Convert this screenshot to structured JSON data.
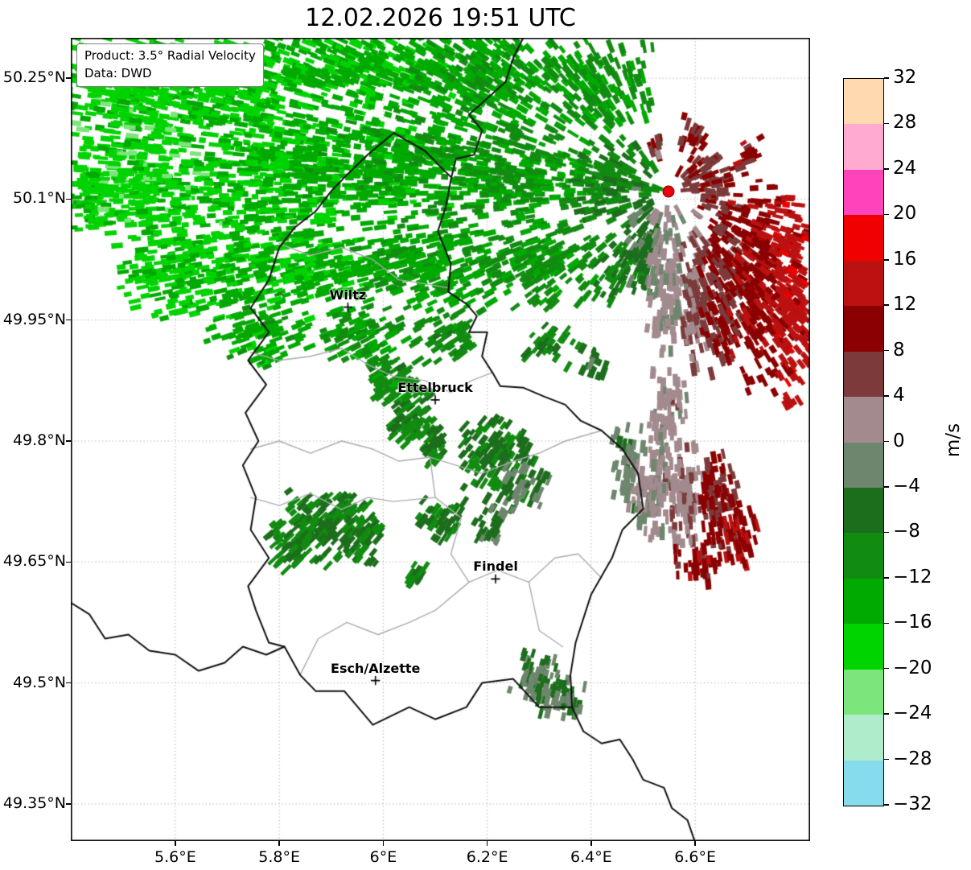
{
  "title": "12.02.2026 19:51 UTC",
  "info_box": {
    "line1": "Product: 3.5° Radial Velocity",
    "line2": "Data: DWD"
  },
  "colorbar": {
    "unit": "m/s",
    "tick_values": [
      32,
      28,
      24,
      20,
      16,
      12,
      8,
      4,
      0,
      -4,
      -8,
      -12,
      -16,
      -20,
      -24,
      -28,
      -32
    ],
    "tick_labels": [
      "32",
      "28",
      "24",
      "20",
      "16",
      "12",
      "8",
      "4",
      "0",
      "−4",
      "−8",
      "−12",
      "−16",
      "−20",
      "−24",
      "−28",
      "−32"
    ],
    "palette": [
      {
        "from": -32,
        "to": -28,
        "color": "#86dcec"
      },
      {
        "from": -28,
        "to": -24,
        "color": "#aeeccc"
      },
      {
        "from": -24,
        "to": -20,
        "color": "#7ce57c"
      },
      {
        "from": -20,
        "to": -16,
        "color": "#00d400"
      },
      {
        "from": -16,
        "to": -12,
        "color": "#00aa00"
      },
      {
        "from": -12,
        "to": -8,
        "color": "#118c11"
      },
      {
        "from": -8,
        "to": -4,
        "color": "#1c6e1c"
      },
      {
        "from": -4,
        "to": 0,
        "color": "#6e866e"
      },
      {
        "from": 0,
        "to": 4,
        "color": "#a28a8e"
      },
      {
        "from": 4,
        "to": 8,
        "color": "#7c3a3a"
      },
      {
        "from": 8,
        "to": 12,
        "color": "#8b0000"
      },
      {
        "from": 12,
        "to": 16,
        "color": "#bb1111"
      },
      {
        "from": 16,
        "to": 20,
        "color": "#f00000"
      },
      {
        "from": 20,
        "to": 24,
        "color": "#ff44bb"
      },
      {
        "from": 24,
        "to": 28,
        "color": "#ffaace"
      },
      {
        "from": 28,
        "to": 32,
        "color": "#ffd9b0"
      }
    ]
  },
  "chart_data": {
    "type": "heatmap",
    "title": "12.02.2026 19:51 UTC",
    "product": "3.5° Radial Velocity",
    "source": "DWD",
    "unit": "m/s",
    "value_range": [
      -32,
      32
    ],
    "lon_range": [
      5.399,
      6.821
    ],
    "lat_range": [
      49.304,
      50.3
    ],
    "x_ticks": {
      "values": [
        5.6,
        5.8,
        6.0,
        6.2,
        6.4,
        6.6
      ],
      "labels": [
        "5.6°E",
        "5.8°E",
        "6°E",
        "6.2°E",
        "6.4°E",
        "6.6°E"
      ]
    },
    "y_ticks": {
      "values": [
        50.25,
        50.1,
        49.95,
        49.8,
        49.65,
        49.5,
        49.35
      ],
      "labels": [
        "50.25°N",
        "50.1°N",
        "49.95°N",
        "49.8°N",
        "49.65°N",
        "49.5°N",
        "49.35°N"
      ]
    },
    "radar_site": {
      "lon": 6.548,
      "lat": 50.109
    },
    "cities": [
      {
        "name": "Wiltz",
        "lon": 5.932,
        "lat": 49.966
      },
      {
        "name": "Ettelbruck",
        "lon": 6.1,
        "lat": 49.851
      },
      {
        "name": "Findel",
        "lon": 6.216,
        "lat": 49.629
      },
      {
        "name": "Esch/Alzette",
        "lon": 5.985,
        "lat": 49.503
      }
    ],
    "velocity_cells": {
      "format": [
        "lon",
        "lat",
        "width_deg",
        "height_deg",
        "velocity_ms",
        "density"
      ],
      "items": [
        [
          5.5,
          50.23,
          0.22,
          0.13,
          -18,
          0.8
        ],
        [
          5.7,
          50.24,
          0.28,
          0.12,
          -17,
          0.8
        ],
        [
          5.95,
          50.26,
          0.33,
          0.1,
          -15,
          0.75
        ],
        [
          6.2,
          50.25,
          0.28,
          0.11,
          -13,
          0.75
        ],
        [
          6.42,
          50.24,
          0.18,
          0.1,
          -11,
          0.7
        ],
        [
          5.44,
          50.1,
          0.09,
          0.09,
          -17,
          0.7
        ],
        [
          5.55,
          50.12,
          0.24,
          0.13,
          -18,
          0.8
        ],
        [
          5.78,
          50.13,
          0.3,
          0.13,
          -16,
          0.75
        ],
        [
          6.02,
          50.14,
          0.32,
          0.13,
          -14,
          0.75
        ],
        [
          6.25,
          50.13,
          0.28,
          0.12,
          -12,
          0.75
        ],
        [
          6.44,
          50.12,
          0.16,
          0.1,
          -9,
          0.7
        ],
        [
          5.62,
          50.01,
          0.22,
          0.1,
          -17,
          0.75
        ],
        [
          5.84,
          50.02,
          0.26,
          0.1,
          -15,
          0.7
        ],
        [
          6.07,
          50.02,
          0.28,
          0.1,
          -13,
          0.7
        ],
        [
          6.3,
          50.02,
          0.22,
          0.09,
          -11,
          0.7
        ],
        [
          6.46,
          50.015,
          0.1,
          0.07,
          -8,
          0.7
        ],
        [
          5.76,
          49.94,
          0.18,
          0.08,
          -14,
          0.65
        ],
        [
          5.96,
          49.93,
          0.16,
          0.07,
          -12,
          0.6
        ],
        [
          6.13,
          49.93,
          0.13,
          0.06,
          -10,
          0.55
        ],
        [
          6.32,
          49.92,
          0.1,
          0.05,
          -8,
          0.5
        ],
        [
          6.4,
          49.9,
          0.05,
          0.04,
          -6,
          0.6
        ],
        [
          6.02,
          49.875,
          0.09,
          0.06,
          -10,
          0.85
        ],
        [
          6.055,
          49.83,
          0.08,
          0.07,
          -9,
          0.9
        ],
        [
          6.095,
          49.795,
          0.05,
          0.05,
          -8,
          0.9
        ],
        [
          6.22,
          49.78,
          0.12,
          0.09,
          -7,
          0.95
        ],
        [
          6.27,
          49.745,
          0.08,
          0.06,
          -4,
          0.85
        ],
        [
          5.9,
          49.705,
          0.15,
          0.06,
          -8,
          0.9
        ],
        [
          5.835,
          49.675,
          0.1,
          0.06,
          -9,
          0.9
        ],
        [
          5.955,
          49.675,
          0.08,
          0.05,
          -8,
          0.85
        ],
        [
          6.11,
          49.7,
          0.08,
          0.05,
          -7,
          0.85
        ],
        [
          6.21,
          49.695,
          0.06,
          0.04,
          -5,
          0.8
        ],
        [
          6.065,
          49.635,
          0.04,
          0.03,
          -8,
          0.95
        ],
        [
          6.3,
          49.505,
          0.1,
          0.06,
          -4,
          0.85
        ],
        [
          6.345,
          49.48,
          0.08,
          0.04,
          -3,
          0.85
        ],
        [
          6.5,
          50.05,
          0.06,
          0.11,
          -5,
          0.85
        ],
        [
          6.545,
          50.0,
          0.07,
          0.17,
          1,
          0.9
        ],
        [
          6.6,
          49.98,
          0.06,
          0.17,
          4,
          0.9
        ],
        [
          6.655,
          50.0,
          0.09,
          0.21,
          8,
          0.9
        ],
        [
          6.72,
          50.0,
          0.09,
          0.23,
          11,
          0.9
        ],
        [
          6.785,
          49.97,
          0.07,
          0.25,
          14,
          0.9
        ],
        [
          6.62,
          50.125,
          0.09,
          0.06,
          7,
          0.85
        ],
        [
          6.7,
          50.155,
          0.05,
          0.04,
          10,
          0.8
        ],
        [
          6.6,
          50.18,
          0.06,
          0.04,
          9,
          0.7
        ],
        [
          6.53,
          50.165,
          0.04,
          0.03,
          6,
          0.6
        ],
        [
          6.55,
          49.84,
          0.06,
          0.08,
          2,
          0.85
        ],
        [
          6.47,
          49.77,
          0.05,
          0.09,
          -2,
          0.85
        ],
        [
          6.52,
          49.75,
          0.07,
          0.13,
          1,
          0.9
        ],
        [
          6.58,
          49.73,
          0.07,
          0.125,
          3,
          0.9
        ],
        [
          6.64,
          49.72,
          0.07,
          0.115,
          9,
          0.9
        ],
        [
          6.69,
          49.685,
          0.06,
          0.075,
          12,
          0.85
        ],
        [
          6.605,
          49.645,
          0.08,
          0.045,
          10,
          0.85
        ]
      ]
    },
    "borders": {
      "country": [
        [
          [
            6.02,
            50.182
          ],
          [
            6.08,
            50.16
          ],
          [
            6.11,
            50.14
          ],
          [
            6.131,
            50.127
          ],
          [
            6.12,
            50.09
          ],
          [
            6.105,
            50.06
          ],
          [
            6.13,
            50.02
          ],
          [
            6.125,
            49.985
          ],
          [
            6.16,
            49.97
          ],
          [
            6.18,
            49.955
          ],
          [
            6.165,
            49.935
          ],
          [
            6.2,
            49.935
          ],
          [
            6.19,
            49.905
          ],
          [
            6.21,
            49.885
          ],
          [
            6.225,
            49.868
          ],
          [
            6.27,
            49.866
          ],
          [
            6.31,
            49.855
          ],
          [
            6.35,
            49.845
          ],
          [
            6.38,
            49.825
          ],
          [
            6.42,
            49.813
          ],
          [
            6.46,
            49.79
          ],
          [
            6.49,
            49.76
          ],
          [
            6.5,
            49.716
          ],
          [
            6.46,
            49.69
          ],
          [
            6.44,
            49.655
          ],
          [
            6.4,
            49.61
          ],
          [
            6.37,
            49.55
          ],
          [
            6.36,
            49.51
          ],
          [
            6.363,
            49.47
          ],
          [
            6.3,
            49.47
          ],
          [
            6.25,
            49.505
          ],
          [
            6.19,
            49.5
          ],
          [
            6.16,
            49.47
          ],
          [
            6.1,
            49.455
          ],
          [
            6.05,
            49.47
          ],
          [
            5.98,
            49.448
          ],
          [
            5.925,
            49.49
          ],
          [
            5.87,
            49.49
          ],
          [
            5.84,
            49.51
          ],
          [
            5.81,
            49.545
          ],
          [
            5.78,
            49.55
          ],
          [
            5.755,
            49.59
          ],
          [
            5.74,
            49.62
          ],
          [
            5.78,
            49.655
          ],
          [
            5.745,
            49.69
          ],
          [
            5.755,
            49.73
          ],
          [
            5.73,
            49.77
          ],
          [
            5.76,
            49.8
          ],
          [
            5.735,
            49.835
          ],
          [
            5.775,
            49.87
          ],
          [
            5.74,
            49.9
          ],
          [
            5.78,
            49.935
          ],
          [
            5.745,
            49.965
          ],
          [
            5.78,
            50.0
          ],
          [
            5.8,
            50.04
          ],
          [
            5.83,
            50.065
          ],
          [
            5.87,
            50.085
          ],
          [
            5.9,
            50.11
          ],
          [
            5.93,
            50.13
          ],
          [
            5.97,
            50.155
          ],
          [
            6.02,
            50.182
          ]
        ],
        [
          [
            6.131,
            50.127
          ],
          [
            6.14,
            50.15
          ],
          [
            6.175,
            50.155
          ],
          [
            6.19,
            50.185
          ],
          [
            6.165,
            50.205
          ],
          [
            6.2,
            50.225
          ],
          [
            6.235,
            50.245
          ],
          [
            6.25,
            50.275
          ],
          [
            6.27,
            50.301
          ]
        ],
        [
          [
            6.363,
            49.47
          ],
          [
            6.385,
            49.44
          ],
          [
            6.42,
            49.425
          ],
          [
            6.455,
            49.43
          ],
          [
            6.48,
            49.405
          ],
          [
            6.5,
            49.38
          ],
          [
            6.54,
            49.37
          ],
          [
            6.555,
            49.345
          ],
          [
            6.585,
            49.33
          ],
          [
            6.6,
            49.302
          ]
        ],
        [
          [
            5.81,
            49.545
          ],
          [
            5.775,
            49.535
          ],
          [
            5.73,
            49.545
          ],
          [
            5.695,
            49.525
          ],
          [
            5.645,
            49.515
          ],
          [
            5.6,
            49.535
          ],
          [
            5.55,
            49.54
          ],
          [
            5.51,
            49.56
          ],
          [
            5.465,
            49.555
          ],
          [
            5.435,
            49.585
          ],
          [
            5.398,
            49.6
          ]
        ]
      ],
      "regional": [
        [
          [
            5.8,
            50.045
          ],
          [
            5.86,
            50.03
          ],
          [
            5.92,
            50.04
          ],
          [
            5.98,
            50.025
          ],
          [
            6.03,
            50.0
          ],
          [
            6.08,
            49.995
          ],
          [
            6.125,
            49.99
          ]
        ],
        [
          [
            5.745,
            49.91
          ],
          [
            5.8,
            49.9
          ],
          [
            5.86,
            49.905
          ],
          [
            5.92,
            49.915
          ],
          [
            5.97,
            49.895
          ],
          [
            6.02,
            49.88
          ],
          [
            6.08,
            49.875
          ],
          [
            6.13,
            49.86
          ],
          [
            6.17,
            49.875
          ],
          [
            6.21,
            49.885
          ]
        ],
        [
          [
            5.745,
            49.79
          ],
          [
            5.8,
            49.8
          ],
          [
            5.86,
            49.785
          ],
          [
            5.92,
            49.8
          ],
          [
            5.98,
            49.79
          ],
          [
            6.03,
            49.775
          ],
          [
            6.09,
            49.78
          ],
          [
            6.14,
            49.77
          ],
          [
            6.19,
            49.76
          ],
          [
            6.25,
            49.775
          ],
          [
            6.3,
            49.785
          ],
          [
            6.35,
            49.8
          ],
          [
            6.42,
            49.813
          ]
        ],
        [
          [
            6.09,
            49.78
          ],
          [
            6.1,
            49.73
          ],
          [
            6.15,
            49.705
          ],
          [
            6.13,
            49.66
          ],
          [
            6.165,
            49.625
          ],
          [
            6.22,
            49.64
          ],
          [
            6.28,
            49.625
          ],
          [
            6.33,
            49.655
          ],
          [
            6.375,
            49.66
          ],
          [
            6.42,
            49.63
          ]
        ],
        [
          [
            5.84,
            49.51
          ],
          [
            5.875,
            49.555
          ],
          [
            5.93,
            49.575
          ],
          [
            5.99,
            49.56
          ],
          [
            6.05,
            49.575
          ],
          [
            6.1,
            49.59
          ],
          [
            6.165,
            49.625
          ]
        ],
        [
          [
            6.28,
            49.625
          ],
          [
            6.3,
            49.565
          ],
          [
            6.345,
            49.545
          ]
        ],
        [
          [
            5.745,
            49.73
          ],
          [
            5.8,
            49.72
          ],
          [
            5.86,
            49.735
          ],
          [
            5.92,
            49.715
          ],
          [
            5.97,
            49.73
          ],
          [
            6.02,
            49.725
          ],
          [
            6.1,
            49.73
          ]
        ]
      ]
    }
  }
}
